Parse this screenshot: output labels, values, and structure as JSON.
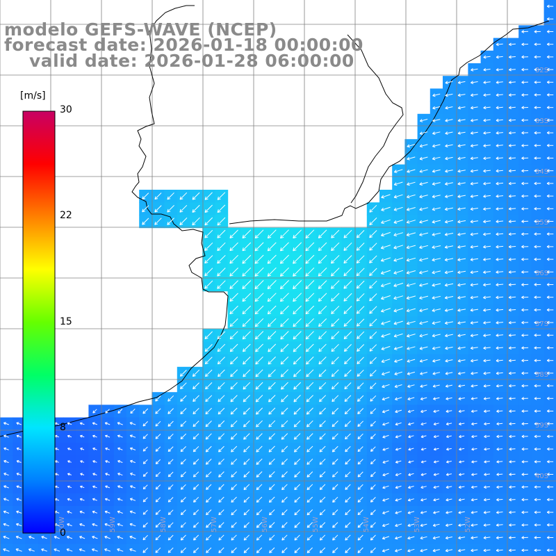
{
  "header": {
    "model": "modelo GEFS-WAVE (NCEP)",
    "forecast": "forecast date: 2026-01-18 00:00:00",
    "valid": "valid date: 2026-01-28 06:00:00"
  },
  "colorbar": {
    "unit": "[m/s]",
    "ticks": [
      "30",
      "22",
      "15",
      "8",
      "0"
    ],
    "min": 0,
    "max": 30,
    "colors": [
      "#0000ff",
      "#0080ff",
      "#00e5ff",
      "#00ff66",
      "#66ff00",
      "#ffff00",
      "#ff8000",
      "#ff0000",
      "#c80064"
    ]
  },
  "axes": {
    "lat_labels": [
      "32S",
      "33S",
      "34S",
      "35S",
      "36S",
      "37S",
      "38S",
      "39S",
      "40S"
    ],
    "lon_labels": [
      "60W",
      "59W",
      "58W",
      "57W",
      "56W",
      "55W",
      "54W",
      "53W",
      "52W"
    ]
  },
  "colors": {
    "land": "#ffffff",
    "coast": "#000000",
    "grid": "#808080",
    "arrow": "#ffffff",
    "sea_low": "#1a4dff",
    "sea_mid": "#1a9bff",
    "sea_high": "#1aecf0"
  }
}
